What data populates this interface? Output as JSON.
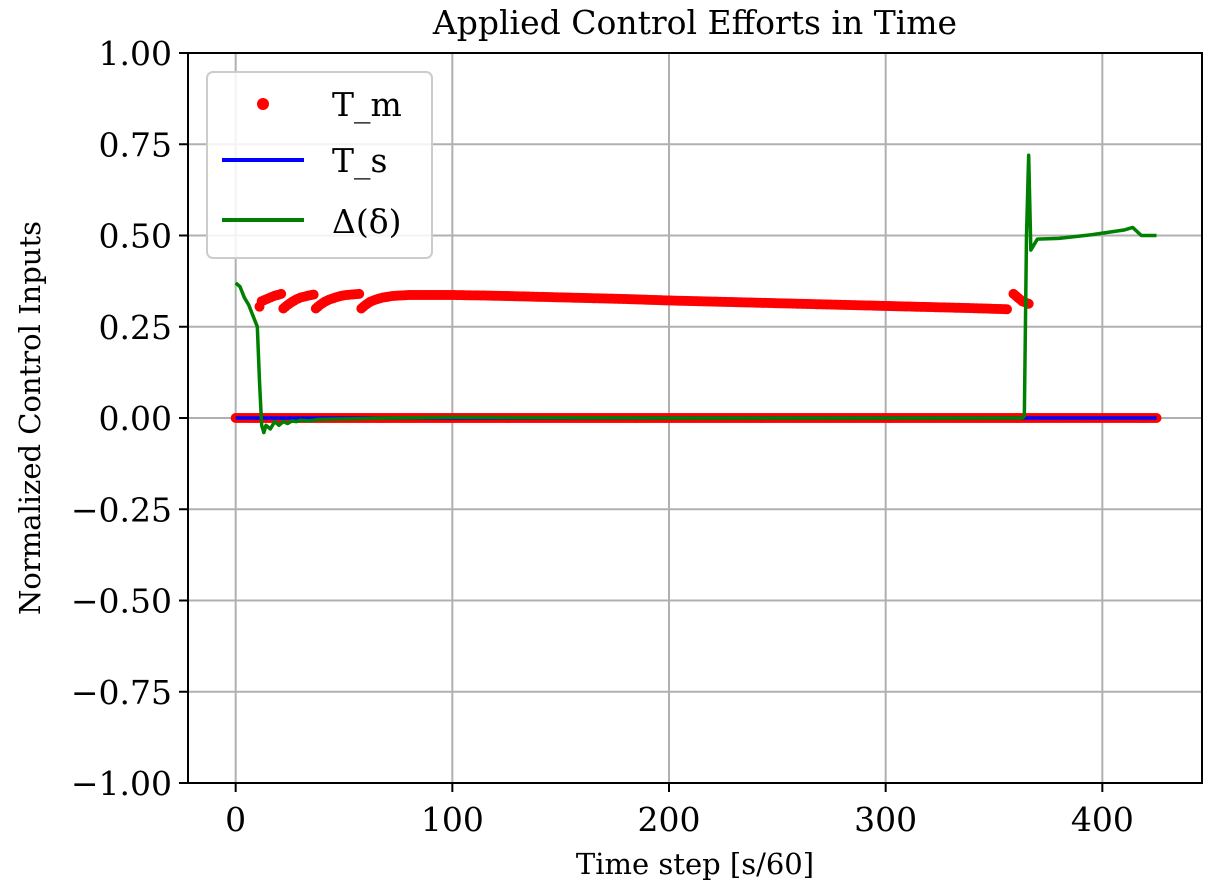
{
  "chart_data": {
    "type": "line",
    "title": "Applied Control Efforts in Time",
    "xlabel": "Time step [s/60]",
    "ylabel": "Normalized Control Inputs",
    "xlim": [
      -22,
      446
    ],
    "ylim": [
      -1.0,
      1.0
    ],
    "x_ticks": [
      0,
      100,
      200,
      300,
      400
    ],
    "x_tick_labels": [
      "0",
      "100",
      "200",
      "300",
      "400"
    ],
    "y_ticks": [
      1.0,
      0.75,
      0.5,
      0.25,
      0.0,
      -0.25,
      -0.5,
      -0.75,
      -1.0
    ],
    "y_tick_labels": [
      "1.00",
      "0.75",
      "0.50",
      "0.25",
      "0.00",
      "−0.25",
      "−0.50",
      "−0.75",
      "−1.00"
    ],
    "grid": true,
    "legend_position": "top-left",
    "series": [
      {
        "name": "T_m",
        "style": "markers",
        "color": "#ff0000",
        "x_range": [
          0,
          425
        ],
        "zero_segments": [
          [
            0,
            425
          ]
        ],
        "segments": [
          [
            [
              11,
              0.305
            ],
            [
              12,
              0.32
            ],
            [
              14,
              0.325
            ],
            [
              16,
              0.33
            ],
            [
              18,
              0.335
            ],
            [
              20,
              0.338
            ],
            [
              21,
              0.34
            ]
          ],
          [
            [
              22,
              0.3
            ],
            [
              24,
              0.31
            ],
            [
              26,
              0.318
            ],
            [
              28,
              0.325
            ],
            [
              30,
              0.33
            ],
            [
              32,
              0.333
            ],
            [
              34,
              0.336
            ],
            [
              36,
              0.338
            ]
          ],
          [
            [
              37,
              0.3
            ],
            [
              39,
              0.31
            ],
            [
              41,
              0.318
            ],
            [
              43,
              0.324
            ],
            [
              45,
              0.328
            ],
            [
              47,
              0.332
            ],
            [
              49,
              0.335
            ],
            [
              51,
              0.337
            ],
            [
              53,
              0.338
            ],
            [
              55,
              0.339
            ],
            [
              57,
              0.34
            ]
          ],
          [
            [
              58,
              0.3
            ],
            [
              60,
              0.31
            ],
            [
              62,
              0.318
            ],
            [
              64,
              0.323
            ],
            [
              66,
              0.327
            ],
            [
              68,
              0.33
            ],
            [
              70,
              0.332
            ],
            [
              72,
              0.334
            ],
            [
              74,
              0.335
            ],
            [
              77,
              0.336
            ],
            [
              80,
              0.337
            ],
            [
              90,
              0.337
            ],
            [
              100,
              0.337
            ],
            [
              120,
              0.335
            ],
            [
              140,
              0.332
            ],
            [
              160,
              0.329
            ],
            [
              180,
              0.326
            ],
            [
              200,
              0.322
            ],
            [
              220,
              0.319
            ],
            [
              240,
              0.316
            ],
            [
              260,
              0.313
            ],
            [
              280,
              0.31
            ],
            [
              300,
              0.307
            ],
            [
              320,
              0.304
            ],
            [
              340,
              0.301
            ],
            [
              356,
              0.298
            ]
          ],
          [
            [
              359,
              0.34
            ],
            [
              361,
              0.33
            ],
            [
              363,
              0.32
            ],
            [
              365,
              0.315
            ],
            [
              366,
              0.313
            ]
          ]
        ]
      },
      {
        "name": "T_s",
        "style": "line",
        "color": "#0000ff",
        "points": [
          [
            0,
            0.0
          ],
          [
            425,
            0.0
          ]
        ]
      },
      {
        "name": "Δ(δ)",
        "style": "line",
        "color": "#008000",
        "points": [
          [
            0,
            0.37
          ],
          [
            2,
            0.36
          ],
          [
            4,
            0.33
          ],
          [
            6,
            0.31
          ],
          [
            8,
            0.28
          ],
          [
            10,
            0.25
          ],
          [
            11,
            0.1
          ],
          [
            12,
            -0.02
          ],
          [
            13,
            -0.04
          ],
          [
            14,
            -0.02
          ],
          [
            16,
            -0.03
          ],
          [
            18,
            -0.01
          ],
          [
            20,
            -0.02
          ],
          [
            22,
            -0.01
          ],
          [
            24,
            -0.015
          ],
          [
            26,
            -0.008
          ],
          [
            28,
            -0.01
          ],
          [
            30,
            -0.006
          ],
          [
            34,
            -0.008
          ],
          [
            38,
            -0.004
          ],
          [
            45,
            -0.003
          ],
          [
            55,
            -0.002
          ],
          [
            70,
            0.0
          ],
          [
            100,
            0.002
          ],
          [
            200,
            0.0
          ],
          [
            300,
            0.0
          ],
          [
            363,
            0.0
          ],
          [
            364,
            0.005
          ],
          [
            365,
            0.5
          ],
          [
            366,
            0.72
          ],
          [
            367,
            0.46
          ],
          [
            368,
            0.47
          ],
          [
            369,
            0.48
          ],
          [
            370,
            0.49
          ],
          [
            380,
            0.492
          ],
          [
            395,
            0.502
          ],
          [
            410,
            0.515
          ],
          [
            414,
            0.522
          ],
          [
            418,
            0.5
          ],
          [
            425,
            0.5
          ]
        ]
      }
    ]
  }
}
